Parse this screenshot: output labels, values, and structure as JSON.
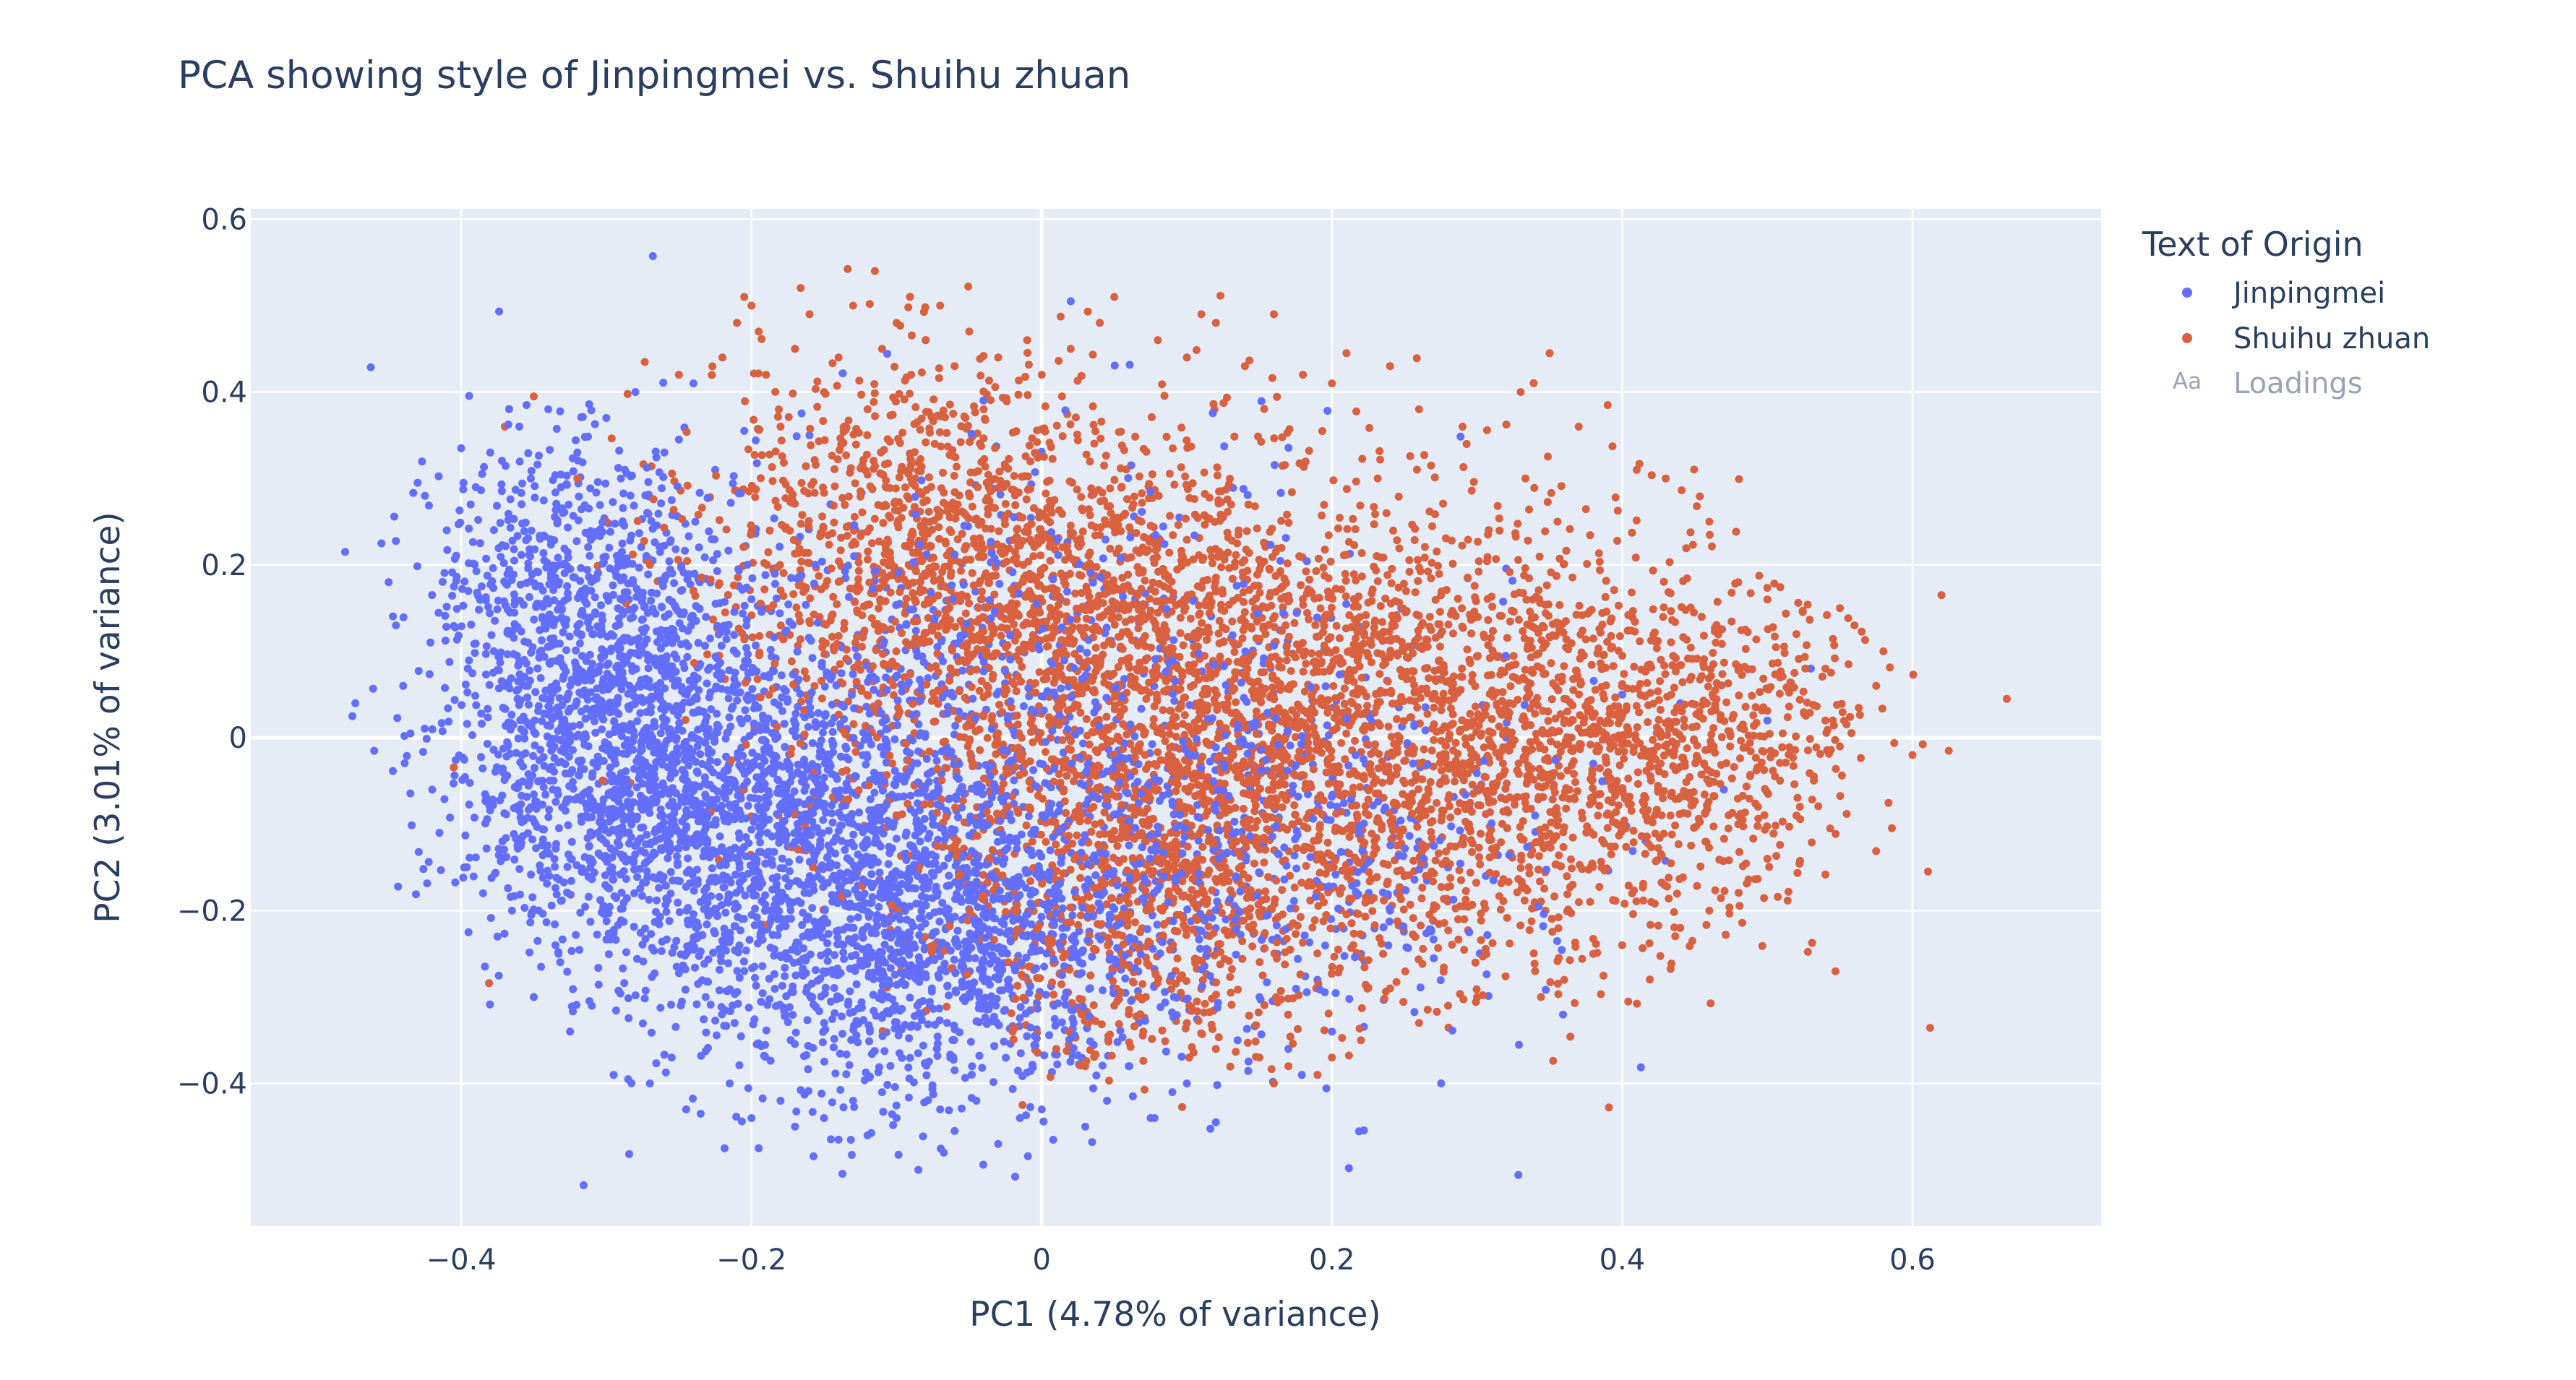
{
  "chart_data": {
    "type": "scatter",
    "title": "PCA showing style of Jinpingmei vs. Shuihu zhuan",
    "xlabel": "PC1 (4.78% of variance)",
    "ylabel": "PC2 (3.01% of variance)",
    "xlim": [
      -0.545,
      0.73
    ],
    "ylim": [
      -0.565,
      0.612
    ],
    "xticks": [
      -0.4,
      -0.2,
      0,
      0.2,
      0.4,
      0.6
    ],
    "xtick_labels": [
      "−0.4",
      "−0.2",
      "0",
      "0.2",
      "0.4",
      "0.6"
    ],
    "yticks": [
      -0.4,
      -0.2,
      0,
      0.2,
      0.4,
      0.6
    ],
    "ytick_labels": [
      "−0.4",
      "−0.2",
      "0",
      "0.2",
      "0.4",
      "0.6"
    ],
    "grid": true,
    "legend": {
      "title": "Text of Origin",
      "placement": "right",
      "entries": [
        {
          "name": "Jinpingmei",
          "marker": "dot"
        },
        {
          "name": "Shuihu zhuan",
          "marker": "dot"
        },
        {
          "name": "Loadings",
          "marker": "Aa",
          "hidden": true
        }
      ]
    },
    "colors": {
      "Jinpingmei": "#636efa",
      "Shuihu zhuan": "#d9613f",
      "plot_background": "#e5ecf6",
      "grid": "#ffffff",
      "text": "#2a3f5f",
      "legend_hidden_text": "#9aa3b5"
    },
    "series": [
      {
        "name": "Jinpingmei",
        "points": [
          [
            -0.48,
            0.215
          ],
          [
            -0.475,
            0.025
          ],
          [
            -0.473,
            0.04
          ],
          [
            -0.46,
            -0.015
          ],
          [
            -0.455,
            0.225
          ],
          [
            -0.45,
            0.18
          ],
          [
            -0.445,
            0.13
          ],
          [
            -0.44,
            0.06
          ],
          [
            -0.435,
            0.005
          ],
          [
            -0.43,
            0.295
          ],
          [
            -0.425,
            0.28
          ],
          [
            -0.42,
            -0.06
          ],
          [
            -0.415,
            -0.11
          ],
          [
            -0.41,
            0.24
          ],
          [
            -0.405,
            0.175
          ],
          [
            -0.4,
            0.335
          ],
          [
            -0.398,
            -0.15
          ],
          [
            -0.395,
            -0.225
          ],
          [
            -0.39,
            0.29
          ],
          [
            -0.385,
            -0.18
          ],
          [
            -0.38,
            0.33
          ],
          [
            -0.375,
            -0.23
          ],
          [
            -0.37,
            0.06
          ],
          [
            -0.365,
            -0.2
          ],
          [
            -0.36,
            0.36
          ],
          [
            -0.355,
            0.385
          ],
          [
            -0.35,
            -0.3
          ],
          [
            -0.345,
            -0.265
          ],
          [
            -0.34,
            0.38
          ],
          [
            -0.335,
            -0.24
          ],
          [
            -0.33,
            0.26
          ],
          [
            -0.325,
            -0.34
          ],
          [
            -0.32,
            0.33
          ],
          [
            -0.31,
            -0.31
          ],
          [
            -0.3,
            0.37
          ],
          [
            -0.295,
            -0.39
          ],
          [
            -0.29,
            0.3
          ],
          [
            -0.285,
            -0.395
          ],
          [
            -0.28,
            0.4
          ],
          [
            -0.27,
            -0.4
          ],
          [
            -0.26,
            0.33
          ],
          [
            -0.255,
            -0.37
          ],
          [
            -0.25,
            0.345
          ],
          [
            -0.245,
            -0.43
          ],
          [
            -0.24,
            0.41
          ],
          [
            -0.235,
            -0.435
          ],
          [
            -0.225,
            0.31
          ],
          [
            -0.215,
            -0.4
          ],
          [
            -0.205,
            0.355
          ],
          [
            -0.2,
            -0.44
          ],
          [
            -0.195,
            -0.475
          ],
          [
            -0.18,
            -0.42
          ],
          [
            -0.17,
            -0.45
          ],
          [
            -0.16,
            0.35
          ],
          [
            -0.15,
            -0.44
          ],
          [
            -0.14,
            -0.465
          ],
          [
            -0.13,
            -0.42
          ],
          [
            -0.12,
            -0.46
          ],
          [
            -0.11,
            -0.41
          ],
          [
            -0.1,
            -0.44
          ],
          [
            -0.085,
            -0.5
          ],
          [
            -0.07,
            -0.43
          ],
          [
            -0.06,
            -0.455
          ],
          [
            -0.045,
            -0.42
          ],
          [
            -0.03,
            -0.47
          ],
          [
            -0.015,
            -0.44
          ],
          [
            0.0,
            -0.43
          ],
          [
            0.02,
            0.505
          ],
          [
            0.03,
            -0.45
          ],
          [
            0.045,
            -0.42
          ],
          [
            0.06,
            -0.38
          ],
          [
            0.075,
            -0.44
          ],
          [
            0.09,
            -0.41
          ],
          [
            0.1,
            -0.4
          ],
          [
            0.12,
            -0.445
          ],
          [
            0.135,
            -0.35
          ],
          [
            0.15,
            -0.3
          ],
          [
            0.17,
            -0.36
          ],
          [
            0.19,
            -0.28
          ],
          [
            0.2,
            -0.34
          ],
          [
            0.22,
            -0.25
          ],
          [
            0.24,
            -0.2
          ],
          [
            0.26,
            -0.12
          ],
          [
            0.28,
            -0.15
          ],
          [
            0.3,
            -0.06
          ],
          [
            0.32,
            0.0
          ],
          [
            0.34,
            -0.09
          ],
          [
            0.36,
            0.02
          ],
          [
            0.38,
            -0.03
          ],
          [
            0.4,
            0.05
          ],
          [
            0.42,
            -0.02
          ],
          [
            0.44,
            0.04
          ],
          [
            0.47,
            -0.06
          ],
          [
            0.5,
            0.02
          ],
          [
            0.53,
            0.08
          ]
        ]
      },
      {
        "name": "Shuihu zhuan",
        "points": [
          [
            -0.37,
            0.36
          ],
          [
            -0.35,
            0.395
          ],
          [
            -0.32,
            0.3
          ],
          [
            -0.3,
            0.25
          ],
          [
            -0.27,
            0.2
          ],
          [
            -0.25,
            0.42
          ],
          [
            -0.24,
            0.17
          ],
          [
            -0.22,
            0.44
          ],
          [
            -0.21,
            0.48
          ],
          [
            -0.205,
            0.51
          ],
          [
            -0.2,
            0.5
          ],
          [
            -0.195,
            0.47
          ],
          [
            -0.19,
            0.42
          ],
          [
            -0.18,
            0.36
          ],
          [
            -0.17,
            0.45
          ],
          [
            -0.16,
            0.49
          ],
          [
            -0.15,
            0.4
          ],
          [
            -0.14,
            0.44
          ],
          [
            -0.13,
            0.5
          ],
          [
            -0.12,
            0.38
          ],
          [
            -0.115,
            0.54
          ],
          [
            -0.11,
            0.45
          ],
          [
            -0.1,
            0.48
          ],
          [
            -0.09,
            0.42
          ],
          [
            -0.08,
            0.46
          ],
          [
            -0.07,
            0.5
          ],
          [
            -0.06,
            0.43
          ],
          [
            -0.05,
            0.47
          ],
          [
            -0.04,
            0.38
          ],
          [
            -0.03,
            0.44
          ],
          [
            -0.01,
            0.46
          ],
          [
            0.0,
            0.42
          ],
          [
            0.02,
            0.45
          ],
          [
            0.04,
            0.48
          ],
          [
            0.05,
            0.51
          ],
          [
            0.08,
            0.46
          ],
          [
            0.1,
            0.44
          ],
          [
            0.11,
            0.49
          ],
          [
            0.12,
            0.48
          ],
          [
            0.14,
            0.43
          ],
          [
            0.16,
            0.49
          ],
          [
            0.18,
            0.42
          ],
          [
            0.2,
            0.41
          ],
          [
            0.21,
            0.445
          ],
          [
            0.24,
            0.43
          ],
          [
            0.26,
            0.38
          ],
          [
            0.29,
            0.36
          ],
          [
            0.33,
            0.4
          ],
          [
            0.35,
            0.445
          ],
          [
            0.37,
            0.36
          ],
          [
            0.39,
            0.385
          ],
          [
            0.41,
            0.31
          ],
          [
            0.43,
            0.3
          ],
          [
            0.46,
            0.25
          ],
          [
            0.48,
            0.18
          ],
          [
            0.5,
            0.16
          ],
          [
            0.52,
            0.12
          ],
          [
            0.54,
            0.08
          ],
          [
            0.55,
            0.15
          ],
          [
            0.56,
            0.13
          ],
          [
            0.575,
            0.06
          ],
          [
            0.58,
            0.1
          ],
          [
            0.6,
            -0.02
          ],
          [
            0.62,
            0.165
          ],
          [
            0.625,
            -0.015
          ],
          [
            0.665,
            0.045
          ],
          [
            0.55,
            -0.01
          ],
          [
            0.54,
            0.02
          ],
          [
            0.52,
            -0.09
          ],
          [
            0.5,
            -0.14
          ],
          [
            0.48,
            -0.1
          ],
          [
            0.46,
            -0.2
          ],
          [
            0.44,
            -0.22
          ],
          [
            0.42,
            -0.19
          ],
          [
            0.4,
            -0.24
          ],
          [
            0.38,
            -0.25
          ],
          [
            0.36,
            -0.28
          ],
          [
            0.34,
            -0.27
          ],
          [
            0.3,
            -0.3
          ],
          [
            0.28,
            -0.31
          ],
          [
            0.26,
            -0.33
          ],
          [
            0.22,
            -0.35
          ],
          [
            0.2,
            -0.37
          ],
          [
            0.17,
            -0.38
          ],
          [
            0.15,
            -0.37
          ],
          [
            0.12,
            -0.36
          ],
          [
            0.1,
            -0.33
          ],
          [
            0.07,
            -0.34
          ],
          [
            0.05,
            -0.31
          ],
          [
            0.03,
            -0.38
          ],
          [
            0.01,
            -0.36
          ],
          [
            -0.02,
            -0.34
          ],
          [
            0.19,
            -0.39
          ],
          [
            0.16,
            -0.4
          ],
          [
            0.24,
            -0.29
          ]
        ]
      }
    ]
  }
}
